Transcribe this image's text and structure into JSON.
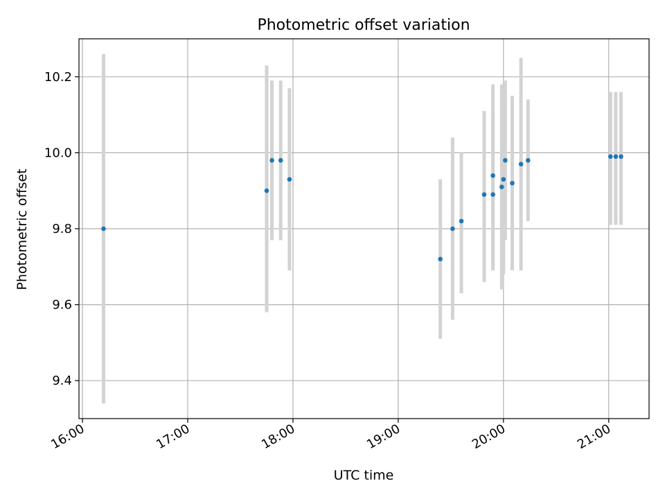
{
  "chart_data": {
    "type": "scatter",
    "title": "Photometric offset variation",
    "xlabel": "UTC time",
    "ylabel": "Photometric offset",
    "x_ticks": [
      "16:00",
      "17:00",
      "18:00",
      "19:00",
      "20:00",
      "21:00"
    ],
    "y_ticks": [
      "9.4",
      "9.6",
      "9.8",
      "10.0",
      "10.2"
    ],
    "xlim": [
      "15:58",
      "21:23"
    ],
    "ylim": [
      9.3,
      10.3
    ],
    "grid": true,
    "marker_color": "#1f77b4",
    "errorbar_color": "#d3d3d3",
    "points": [
      {
        "x": "16:12",
        "y": 9.8,
        "ylow": 9.34,
        "yhigh": 10.26
      },
      {
        "x": "17:45",
        "y": 9.9,
        "ylow": 9.58,
        "yhigh": 10.23
      },
      {
        "x": "17:48",
        "y": 9.98,
        "ylow": 9.77,
        "yhigh": 10.19
      },
      {
        "x": "17:53",
        "y": 9.98,
        "ylow": 9.77,
        "yhigh": 10.19
      },
      {
        "x": "17:58",
        "y": 9.93,
        "ylow": 9.69,
        "yhigh": 10.17
      },
      {
        "x": "19:24",
        "y": 9.72,
        "ylow": 9.51,
        "yhigh": 9.93
      },
      {
        "x": "19:31",
        "y": 9.8,
        "ylow": 9.56,
        "yhigh": 10.04
      },
      {
        "x": "19:36",
        "y": 9.82,
        "ylow": 9.63,
        "yhigh": 10.0
      },
      {
        "x": "19:49",
        "y": 9.89,
        "ylow": 9.66,
        "yhigh": 10.11
      },
      {
        "x": "19:54",
        "y": 9.94,
        "ylow": 9.69,
        "yhigh": 10.18
      },
      {
        "x": "19:54",
        "y": 9.89,
        "ylow": 9.69,
        "yhigh": 10.1
      },
      {
        "x": "19:59",
        "y": 9.91,
        "ylow": 9.64,
        "yhigh": 10.18
      },
      {
        "x": "20:00",
        "y": 9.93,
        "ylow": 9.68,
        "yhigh": 10.17
      },
      {
        "x": "20:01",
        "y": 9.98,
        "ylow": 9.77,
        "yhigh": 10.19
      },
      {
        "x": "20:05",
        "y": 9.92,
        "ylow": 9.69,
        "yhigh": 10.15
      },
      {
        "x": "20:10",
        "y": 9.97,
        "ylow": 9.69,
        "yhigh": 10.25
      },
      {
        "x": "20:14",
        "y": 9.98,
        "ylow": 9.82,
        "yhigh": 10.14
      },
      {
        "x": "21:01",
        "y": 9.99,
        "ylow": 9.81,
        "yhigh": 10.16
      },
      {
        "x": "21:04",
        "y": 9.99,
        "ylow": 9.81,
        "yhigh": 10.16
      },
      {
        "x": "21:07",
        "y": 9.99,
        "ylow": 9.81,
        "yhigh": 10.16
      }
    ]
  }
}
